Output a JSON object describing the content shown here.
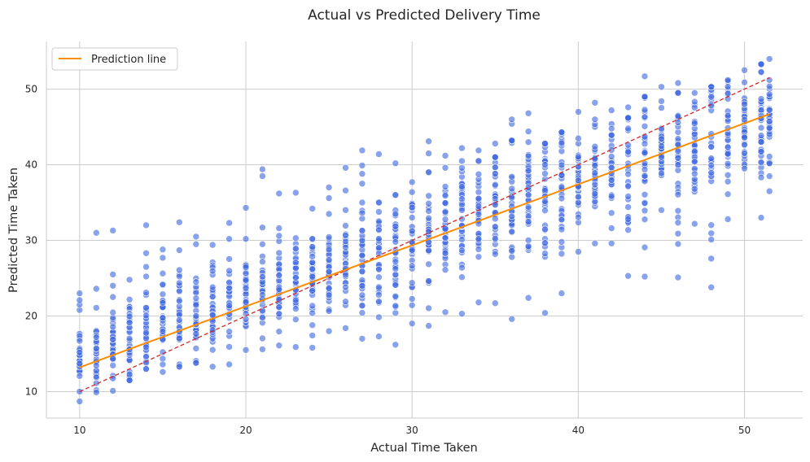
{
  "chart_data": {
    "type": "scatter",
    "title": "Actual vs Predicted Delivery Time",
    "xlabel": "Actual Time Taken",
    "ylabel": "Predicted Time Taken",
    "xlim": [
      8,
      53.5
    ],
    "ylim": [
      6.5,
      56.3
    ],
    "xticks": [
      10,
      20,
      30,
      40,
      50
    ],
    "yticks": [
      10,
      20,
      30,
      40,
      50
    ],
    "grid": true,
    "legend": {
      "position": "top-left",
      "entries": [
        "Prediction line"
      ]
    },
    "colors": {
      "points": "#4169E1",
      "prediction_line": "#FF8C00",
      "ideal_line": "#D62728",
      "grid": "#CCCCCC"
    },
    "prediction_line": {
      "x": [
        10,
        51.5
      ],
      "y": [
        13.2,
        46.7
      ]
    },
    "ideal_line": {
      "x": [
        10,
        51.5
      ],
      "y": [
        10,
        51.5
      ]
    },
    "point_columns": [
      {
        "x": 10,
        "lo": 8.7,
        "hi": 20.8,
        "center": 14.0,
        "outliers": [
          21.5,
          22.1,
          23.0
        ]
      },
      {
        "x": 11,
        "lo": 9.9,
        "hi": 23.6,
        "center": 15.0,
        "outliers": [
          31.0
        ]
      },
      {
        "x": 12,
        "lo": 10.1,
        "hi": 22.5,
        "center": 16.0,
        "outliers": [
          24.0,
          25.5,
          31.3
        ]
      },
      {
        "x": 13,
        "lo": 11.5,
        "hi": 24.8,
        "center": 17.0,
        "outliers": []
      },
      {
        "x": 14,
        "lo": 13.0,
        "hi": 26.5,
        "center": 18.0,
        "outliers": [
          28.3,
          32.0
        ]
      },
      {
        "x": 15,
        "lo": 12.6,
        "hi": 27.7,
        "center": 19.0,
        "outliers": [
          28.8
        ]
      },
      {
        "x": 16,
        "lo": 13.3,
        "hi": 28.7,
        "center": 19.5,
        "outliers": [
          32.4
        ]
      },
      {
        "x": 17,
        "lo": 13.8,
        "hi": 29.5,
        "center": 20.5,
        "outliers": [
          30.5
        ]
      },
      {
        "x": 18,
        "lo": 13.3,
        "hi": 29.4,
        "center": 21.0,
        "outliers": []
      },
      {
        "x": 19,
        "lo": 13.6,
        "hi": 30.2,
        "center": 22.0,
        "outliers": [
          32.3
        ]
      },
      {
        "x": 20,
        "lo": 15.5,
        "hi": 30.2,
        "center": 23.0,
        "outliers": [
          34.3
        ]
      },
      {
        "x": 21,
        "lo": 15.6,
        "hi": 29.5,
        "center": 23.5,
        "outliers": [
          31.7,
          38.5,
          39.4
        ]
      },
      {
        "x": 22,
        "lo": 16.1,
        "hi": 30.6,
        "center": 24.0,
        "outliers": [
          31.6,
          36.2
        ]
      },
      {
        "x": 23,
        "lo": 15.9,
        "hi": 30.3,
        "center": 24.5,
        "outliers": [
          36.3
        ]
      },
      {
        "x": 24,
        "lo": 15.8,
        "hi": 30.2,
        "center": 25.0,
        "outliers": [
          34.2
        ]
      },
      {
        "x": 25,
        "lo": 18.0,
        "hi": 33.5,
        "center": 26.0,
        "outliers": [
          35.6,
          37.0
        ]
      },
      {
        "x": 26,
        "lo": 18.4,
        "hi": 34.0,
        "center": 27.0,
        "outliers": [
          36.6,
          39.6
        ]
      },
      {
        "x": 27,
        "lo": 17.0,
        "hi": 35.0,
        "center": 27.5,
        "outliers": [
          37.5,
          38.8,
          39.9,
          41.9
        ]
      },
      {
        "x": 28,
        "lo": 17.3,
        "hi": 35.0,
        "center": 28.0,
        "outliers": [
          41.4
        ]
      },
      {
        "x": 29,
        "lo": 16.2,
        "hi": 36.0,
        "center": 28.5,
        "outliers": [
          40.2
        ]
      },
      {
        "x": 30,
        "lo": 19.0,
        "hi": 37.7,
        "center": 29.5,
        "outliers": []
      },
      {
        "x": 31,
        "lo": 18.7,
        "hi": 39.0,
        "center": 30.0,
        "outliers": [
          41.5,
          43.1
        ]
      },
      {
        "x": 32,
        "lo": 20.5,
        "hi": 39.6,
        "center": 31.0,
        "outliers": [
          41.2
        ]
      },
      {
        "x": 33,
        "lo": 20.3,
        "hi": 40.5,
        "center": 32.0,
        "outliers": [
          42.2
        ]
      },
      {
        "x": 34,
        "lo": 21.8,
        "hi": 40.5,
        "center": 33.0,
        "outliers": [
          41.9
        ]
      },
      {
        "x": 35,
        "lo": 21.7,
        "hi": 41.0,
        "center": 34.0,
        "outliers": [
          42.8
        ]
      },
      {
        "x": 36,
        "lo": 19.6,
        "hi": 43.2,
        "center": 34.5,
        "outliers": [
          45.4,
          46.0
        ]
      },
      {
        "x": 37,
        "lo": 22.4,
        "hi": 43.0,
        "center": 35.5,
        "outliers": [
          44.4,
          46.8
        ]
      },
      {
        "x": 38,
        "lo": 20.4,
        "hi": 42.8,
        "center": 36.5,
        "outliers": []
      },
      {
        "x": 39,
        "lo": 23.0,
        "hi": 44.3,
        "center": 37.0,
        "outliers": []
      },
      {
        "x": 40,
        "lo": 28.5,
        "hi": 47.0,
        "center": 38.0,
        "outliers": []
      },
      {
        "x": 41,
        "lo": 29.6,
        "hi": 46.0,
        "center": 39.0,
        "outliers": [
          48.2
        ]
      },
      {
        "x": 42,
        "lo": 29.6,
        "hi": 47.2,
        "center": 39.5,
        "outliers": []
      },
      {
        "x": 43,
        "lo": 25.3,
        "hi": 46.2,
        "center": 40.0,
        "outliers": [
          47.6
        ]
      },
      {
        "x": 44,
        "lo": 25.2,
        "hi": 49.0,
        "center": 41.0,
        "outliers": [
          51.7
        ]
      },
      {
        "x": 45,
        "lo": 34.0,
        "hi": 48.4,
        "center": 41.5,
        "outliers": [
          50.3
        ]
      },
      {
        "x": 46,
        "lo": 25.1,
        "hi": 49.5,
        "center": 42.0,
        "outliers": [
          50.8
        ]
      },
      {
        "x": 47,
        "lo": 32.2,
        "hi": 49.5,
        "center": 43.0,
        "outliers": []
      },
      {
        "x": 48,
        "lo": 23.8,
        "hi": 50.3,
        "center": 43.5,
        "outliers": []
      },
      {
        "x": 49,
        "lo": 32.8,
        "hi": 51.2,
        "center": 44.0,
        "outliers": []
      },
      {
        "x": 50,
        "lo": 39.5,
        "hi": 52.5,
        "center": 45.0,
        "outliers": []
      },
      {
        "x": 51,
        "lo": 33.0,
        "hi": 53.3,
        "center": 46.0,
        "outliers": []
      },
      {
        "x": 51.5,
        "lo": 36.5,
        "hi": 54.0,
        "center": 46.5,
        "outliers": []
      }
    ]
  }
}
